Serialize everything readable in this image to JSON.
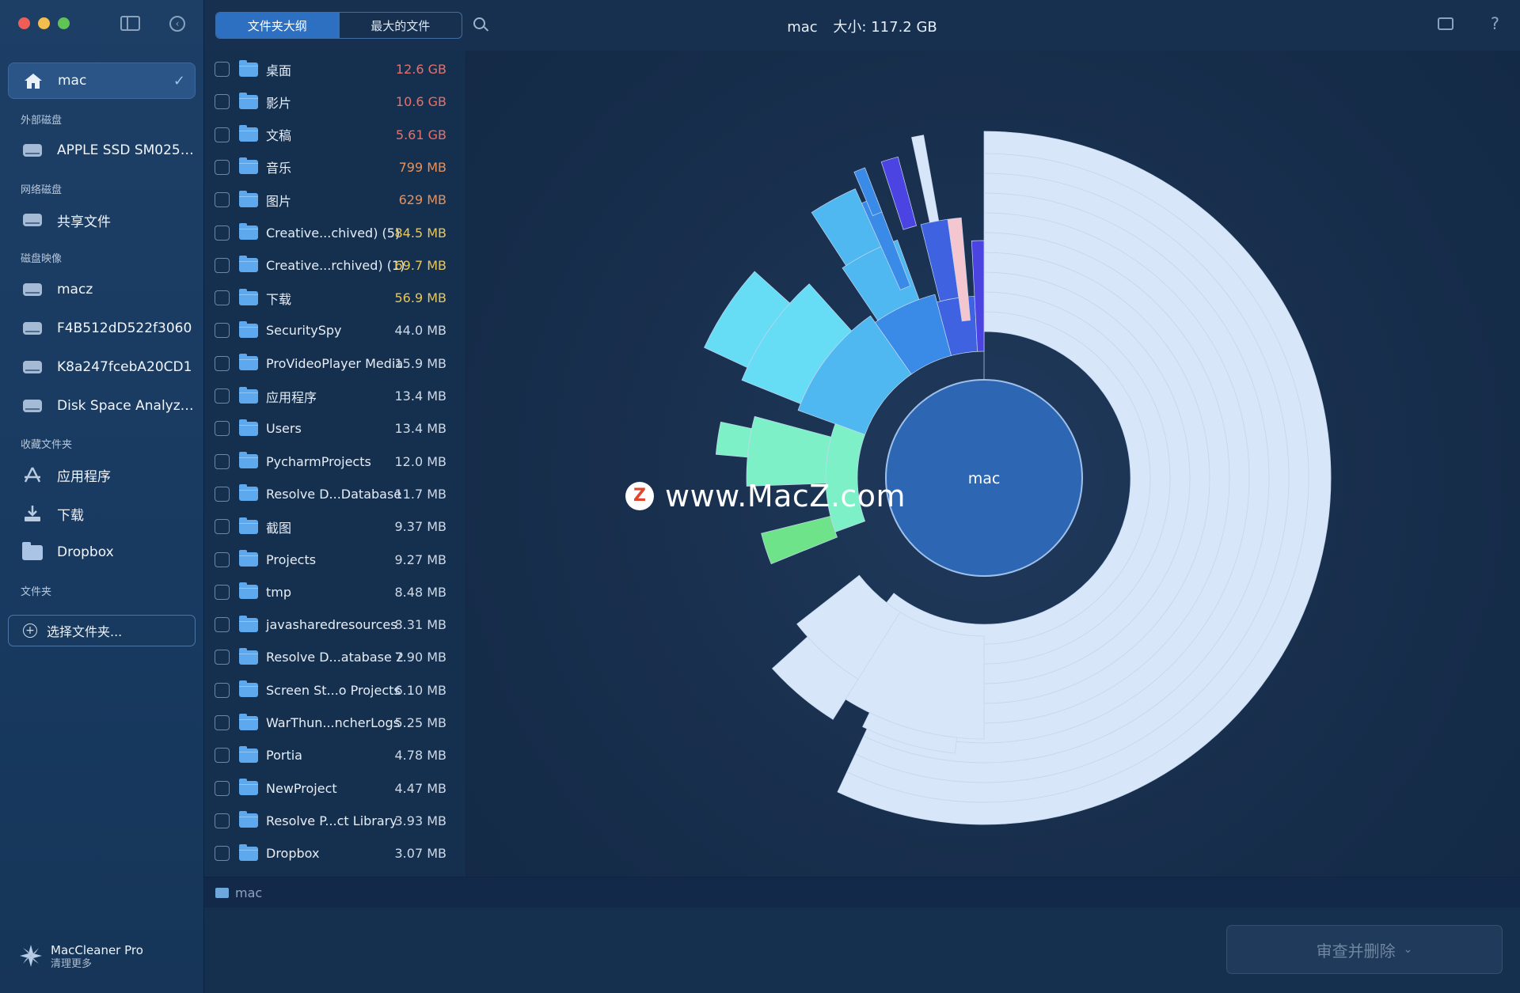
{
  "sidebar": {
    "items": {
      "home": "mac",
      "apple_ssd": "APPLE SSD SM0256...",
      "shared": "共享文件",
      "macz": "macz",
      "img1": "F4B512dD522f3060",
      "img2": "K8a247fcebA20CD1",
      "dsa": "Disk Space Analyzer...",
      "apps": "应用程序",
      "downloads": "下载",
      "dropbox": "Dropbox"
    },
    "sections": {
      "external": "外部磁盘",
      "network": "网络磁盘",
      "images": "磁盘映像",
      "favorites": "收藏文件夹",
      "folders": "文件夹"
    },
    "choose_folder": "选择文件夹...",
    "brand_name": "MacCleaner Pro",
    "brand_sub": "清理更多"
  },
  "toolbar": {
    "tab_outline": "文件夹大纲",
    "tab_largest": "最大的文件",
    "title_name": "mac",
    "title_size": "大小: 117.2 GB"
  },
  "colors": {
    "size_red": "#e8706a",
    "size_orange": "#e8905a",
    "size_yellow": "#e8c75a",
    "size_normal": "#cfd9e6"
  },
  "files": [
    {
      "name": "桌面",
      "size": "12.6 GB",
      "color": "#e8706a"
    },
    {
      "name": "影片",
      "size": "10.6 GB",
      "color": "#e8706a"
    },
    {
      "name": "文稿",
      "size": "5.61 GB",
      "color": "#e8706a"
    },
    {
      "name": "音乐",
      "size": "799 MB",
      "color": "#e8905a"
    },
    {
      "name": "图片",
      "size": "629 MB",
      "color": "#e8905a"
    },
    {
      "name": "Creative...chived) (5)",
      "size": "84.5 MB",
      "color": "#e8c75a"
    },
    {
      "name": "Creative...rchived) (1)",
      "size": "69.7 MB",
      "color": "#e8c75a"
    },
    {
      "name": "下载",
      "size": "56.9 MB",
      "color": "#e8c75a"
    },
    {
      "name": "SecuritySpy",
      "size": "44.0 MB",
      "color": "#cfd9e6"
    },
    {
      "name": "ProVideoPlayer Media",
      "size": "15.9 MB",
      "color": "#cfd9e6"
    },
    {
      "name": "应用程序",
      "size": "13.4 MB",
      "color": "#cfd9e6"
    },
    {
      "name": "Users",
      "size": "13.4 MB",
      "color": "#cfd9e6"
    },
    {
      "name": "PycharmProjects",
      "size": "12.0 MB",
      "color": "#cfd9e6"
    },
    {
      "name": "Resolve D...Database",
      "size": "11.7 MB",
      "color": "#cfd9e6"
    },
    {
      "name": "截图",
      "size": "9.37 MB",
      "color": "#cfd9e6"
    },
    {
      "name": "Projects",
      "size": "9.27 MB",
      "color": "#cfd9e6"
    },
    {
      "name": "tmp",
      "size": "8.48 MB",
      "color": "#cfd9e6"
    },
    {
      "name": "javasharedresources",
      "size": "8.31 MB",
      "color": "#cfd9e6"
    },
    {
      "name": "Resolve D...atabase 2",
      "size": "7.90 MB",
      "color": "#cfd9e6"
    },
    {
      "name": "Screen St...o Projects",
      "size": "6.10 MB",
      "color": "#cfd9e6"
    },
    {
      "name": "WarThun...ncherLogs",
      "size": "5.25 MB",
      "color": "#cfd9e6"
    },
    {
      "name": "Portia",
      "size": "4.78 MB",
      "color": "#cfd9e6"
    },
    {
      "name": "NewProject",
      "size": "4.47 MB",
      "color": "#cfd9e6"
    },
    {
      "name": "Resolve P...ct Library",
      "size": "3.93 MB",
      "color": "#cfd9e6"
    },
    {
      "name": "Dropbox",
      "size": "3.07 MB",
      "color": "#cfd9e6"
    }
  ],
  "chart": {
    "center_label": "mac",
    "watermark_z": "Z",
    "watermark": "www.MacZ.com",
    "palette": {
      "light": "#d7e6f8",
      "cyan": "#67dcf5",
      "sky": "#4fb8f0",
      "blue": "#3a8ae8",
      "indigo": "#3f62e0",
      "violet": "#4c43e3",
      "mint": "#7ef0c8",
      "green": "#6ee389",
      "pink": "#f4c6cf",
      "center": "#2d67b4"
    }
  },
  "pathbar": {
    "label": "mac"
  },
  "footer": {
    "review_label": "审查并删除"
  }
}
